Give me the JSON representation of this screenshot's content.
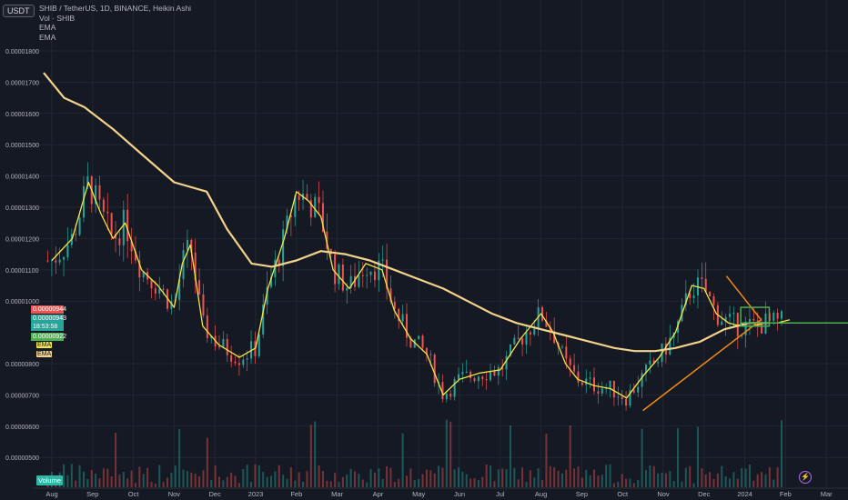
{
  "header": {
    "currency": "USDT",
    "title": "SHIB / TetherUS, 1D, BINANCE, Heikin Ashi",
    "indicators": [
      "Vol · SHIB",
      "EMA",
      "EMA"
    ]
  },
  "price_tags": {
    "current": "0.00000944",
    "prev": "0.00000943",
    "countdown": "18:53:58",
    "low": "0.00000922",
    "ema_fast": "EMA",
    "ema_slow": "EMA"
  },
  "volume_label": "Volume",
  "colors": {
    "up": "#26a69a",
    "down": "#ef5350",
    "ema_fast": "#f5e342",
    "ema_slow": "#f3d28a",
    "triangle": "#f38a12",
    "rect": "#4caf50",
    "grid": "#222632",
    "bg": "#151924"
  },
  "chart_data": {
    "type": "line",
    "title": "SHIB / TetherUS, 1D, BINANCE, Heikin Ashi",
    "ylim": [
      4.4e-06,
      1.85e-05
    ],
    "y_ticks": [
      "0.00001800",
      "0.00001700",
      "0.00001600",
      "0.00001500",
      "0.00001400",
      "0.00001300",
      "0.00001200",
      "0.00001100",
      "0.00001000",
      "0.00000800",
      "0.00000700",
      "0.00000600",
      "0.00000500"
    ],
    "x_ticks": [
      "Aug",
      "Sep",
      "Oct",
      "Nov",
      "Dec",
      "2023",
      "Feb",
      "Mar",
      "Apr",
      "May",
      "Jun",
      "Jul",
      "Aug",
      "Sep",
      "Oct",
      "Nov",
      "Dec",
      "2024",
      "Feb",
      "Mar"
    ],
    "series": [
      {
        "name": "EMA",
        "x_month_index": [
          0,
          0.5,
          0.9,
          1.2,
          1.5,
          1.8,
          2.2,
          2.6,
          3.0,
          3.2,
          3.4,
          3.7,
          4.1,
          4.6,
          5.0,
          5.3,
          5.7,
          6.0,
          6.3,
          6.6,
          6.9,
          7.3,
          7.7,
          8.1,
          8.4,
          8.8,
          9.2,
          9.6,
          10.0,
          10.5,
          11.0,
          11.5,
          12.0,
          12.3,
          12.6,
          12.9,
          13.3,
          13.7,
          14.1,
          14.5,
          14.9,
          15.3,
          15.7,
          16.0,
          16.3,
          16.6,
          16.9,
          17.2,
          17.5,
          17.8,
          18.1
        ],
        "values": [
          1.13e-05,
          1.2e-05,
          1.38e-05,
          1.28e-05,
          1.2e-05,
          1.25e-05,
          1.1e-05,
          1.05e-05,
          9.8e-06,
          1.12e-05,
          1.18e-05,
          9.2e-06,
          8.6e-06,
          8.2e-06,
          8.5e-06,
          1.04e-05,
          1.2e-05,
          1.35e-05,
          1.32e-05,
          1.27e-05,
          1.1e-05,
          1.04e-05,
          1.12e-05,
          1.1e-05,
          9.7e-06,
          8.8e-06,
          8.3e-06,
          7e-06,
          7.5e-06,
          7.7e-06,
          7.8e-06,
          8.8e-06,
          9.6e-06,
          9e-06,
          8e-06,
          7.5e-06,
          7.3e-06,
          7.2e-06,
          6.9e-06,
          7.6e-06,
          8.2e-06,
          9e-06,
          1.05e-05,
          1.04e-05,
          9.6e-06,
          9.3e-06,
          9.2e-06,
          9.2e-06,
          9.3e-06,
          9.3e-06,
          9.4e-06
        ]
      },
      {
        "name": "EMA",
        "x_month_index": [
          -0.2,
          0.3,
          0.8,
          1.5,
          2.2,
          3.0,
          3.8,
          4.3,
          4.9,
          5.4,
          6.0,
          6.6,
          7.2,
          7.8,
          8.4,
          9.0,
          9.6,
          10.2,
          10.8,
          11.4,
          12.0,
          12.6,
          13.2,
          13.8,
          14.3,
          14.8,
          15.3,
          15.9,
          16.5,
          17.1,
          17.6
        ],
        "values": [
          1.73e-05,
          1.65e-05,
          1.62e-05,
          1.55e-05,
          1.47e-05,
          1.38e-05,
          1.35e-05,
          1.23e-05,
          1.12e-05,
          1.11e-05,
          1.13e-05,
          1.16e-05,
          1.15e-05,
          1.13e-05,
          1.1e-05,
          1.07e-05,
          1.04e-05,
          1e-05,
          9.6e-06,
          9.3e-06,
          9.1e-06,
          8.9e-06,
          8.7e-06,
          8.5e-06,
          8.4e-06,
          8.4e-06,
          8.5e-06,
          8.7e-06,
          9.1e-06,
          9.3e-06,
          9.3e-06
        ]
      }
    ],
    "drawings": {
      "triangle_upper": [
        [
          16.55,
          1.08e-05
        ],
        [
          17.4,
          9.4e-06
        ]
      ],
      "triangle_lower": [
        [
          14.5,
          6.5e-06
        ],
        [
          17.4,
          9.4e-06
        ]
      ],
      "rectangle": [
        [
          16.9,
          9.8e-06
        ],
        [
          17.6,
          9.2e-06
        ]
      ],
      "horizontal_line": 9.3e-06
    },
    "ohlc_style": "heikin-ashi candles, daily",
    "grid": true
  }
}
